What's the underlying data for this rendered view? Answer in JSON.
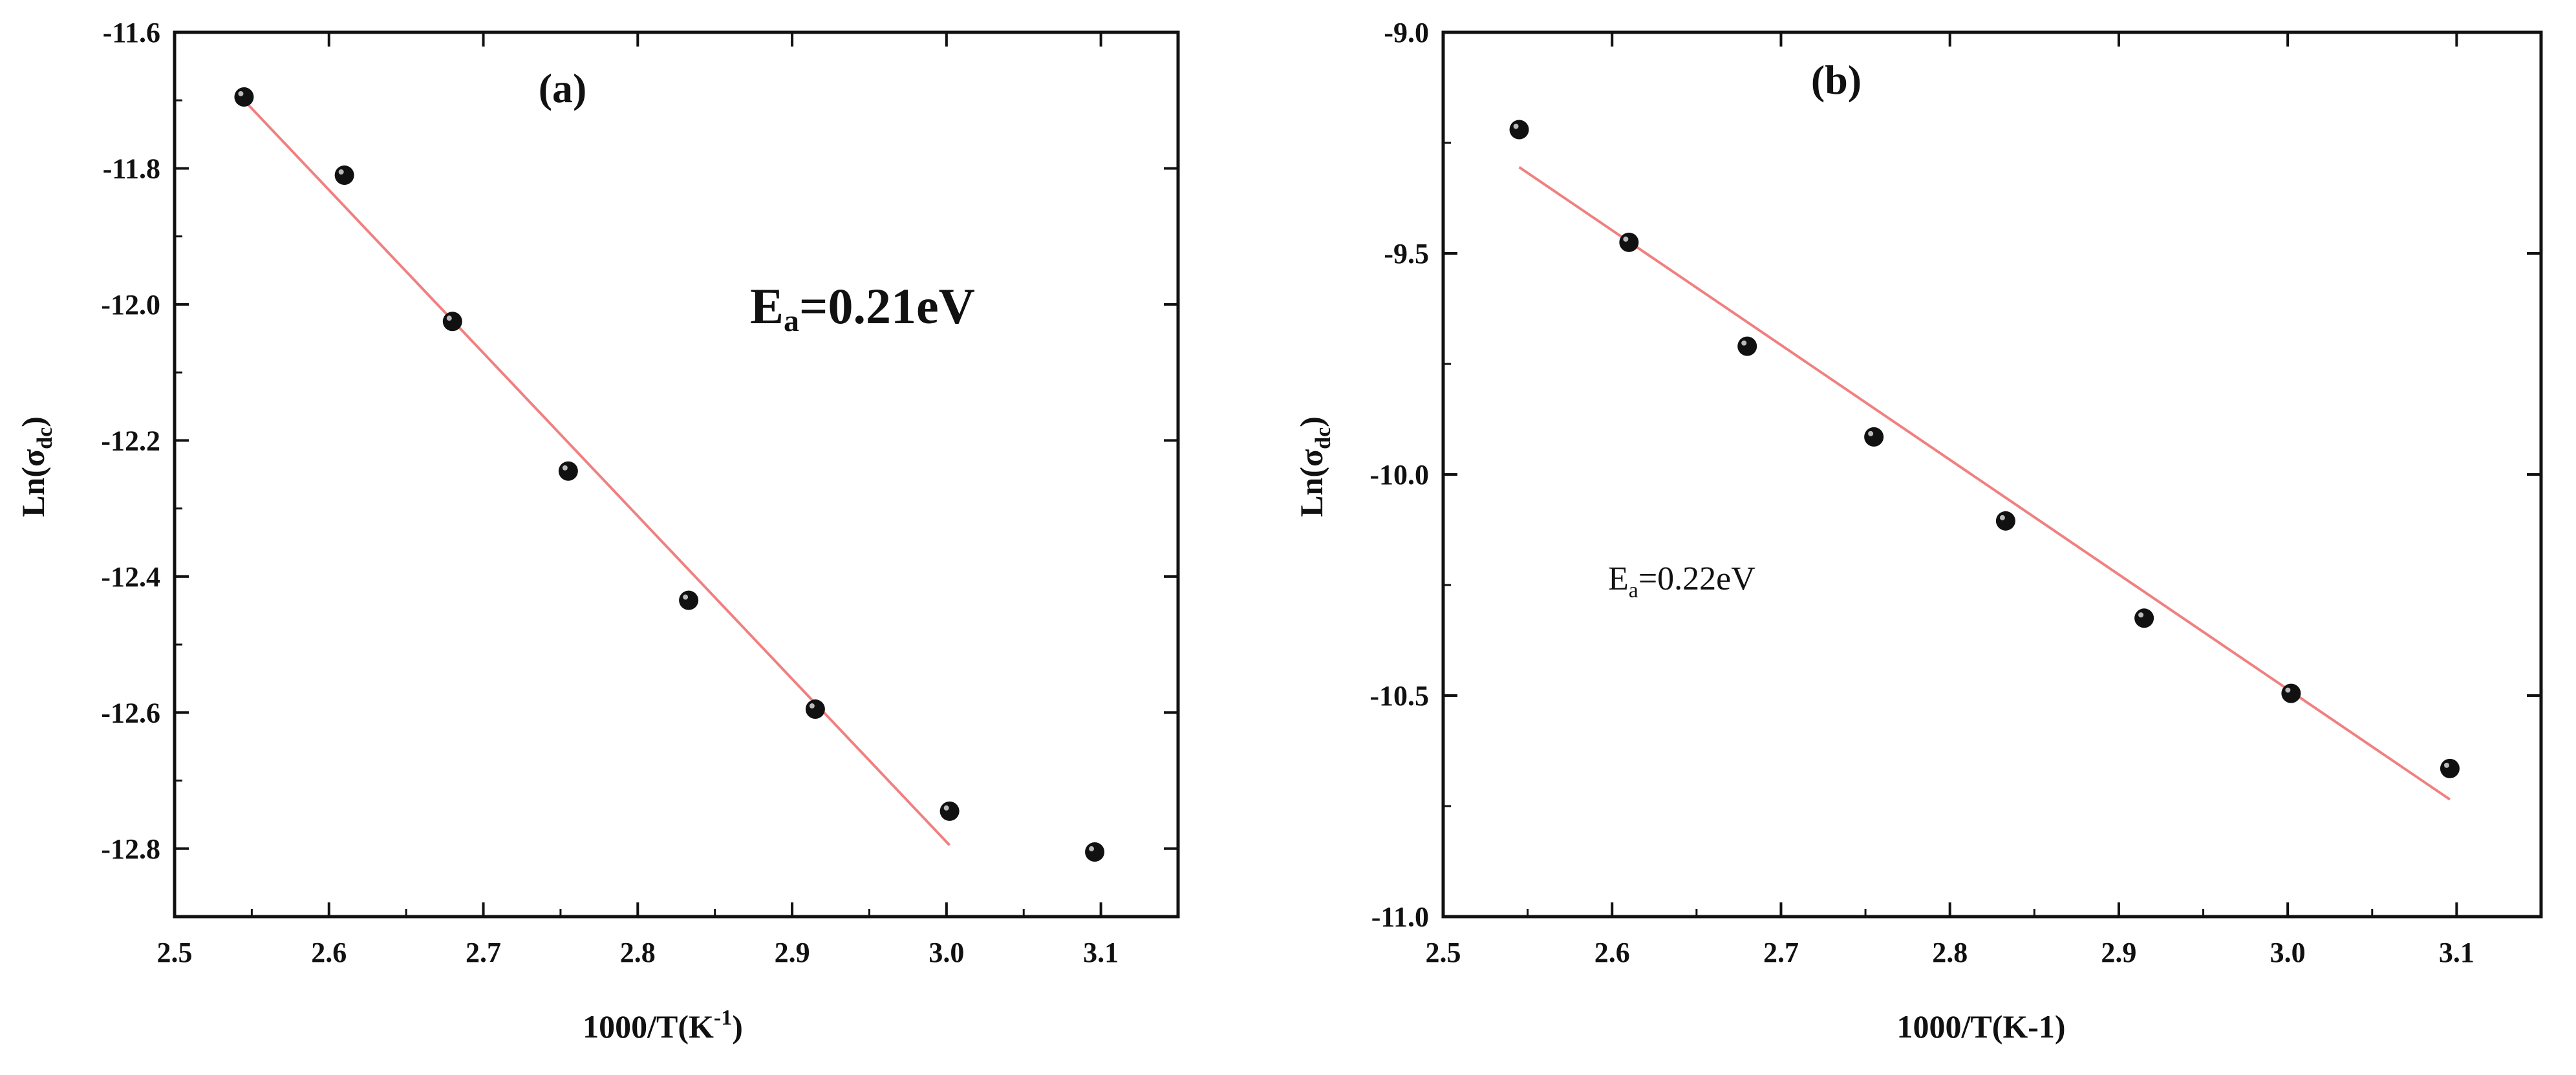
{
  "chart_data": [
    {
      "type": "scatter",
      "panel_label": "(a)",
      "xlabel": "1000/T(K",
      "xlabel_sup": "-1",
      "xlabel_end": ")",
      "ylabel": "Ln(σ",
      "ylabel_sub": "dc",
      "ylabel_end": ")",
      "annotation": "Ea=0.21eV",
      "annotation_main": "E",
      "annotation_sub": "a",
      "annotation_rest": "=0.21eV",
      "xlim": [
        2.5,
        3.15
      ],
      "ylim": [
        -12.9,
        -11.6
      ],
      "xticks": [
        2.5,
        2.6,
        2.7,
        2.8,
        2.9,
        3.0,
        3.1
      ],
      "xtick_labels": [
        "2.5",
        "2.6",
        "2.7",
        "2.8",
        "2.9",
        "3.0",
        "3.1"
      ],
      "yticks": [
        -11.6,
        -11.8,
        -12.0,
        -12.2,
        -12.4,
        -12.6,
        -12.8
      ],
      "ytick_labels": [
        "-11.6",
        "-11.8",
        "-12.0",
        "-12.2",
        "-12.4",
        "-12.6",
        "-12.8"
      ],
      "points": {
        "x": [
          2.545,
          2.61,
          2.68,
          2.755,
          2.833,
          2.915,
          3.002,
          3.096
        ],
        "y": [
          -11.695,
          -11.81,
          -12.025,
          -12.245,
          -12.435,
          -12.595,
          -12.745,
          -12.805
        ]
      },
      "fit_line": {
        "x": [
          2.545,
          3.002
        ],
        "y": [
          -11.7,
          -12.795
        ],
        "color": "#f08080"
      },
      "point_color": "#111111"
    },
    {
      "type": "scatter",
      "panel_label": "(b)",
      "xlabel": "1000/T(K-1)",
      "ylabel": "Ln(σ",
      "ylabel_sub": "dc",
      "ylabel_end": ")",
      "annotation": "Ea=0.22eV",
      "annotation_main": "E",
      "annotation_sub": "a",
      "annotation_rest": "=0.22eV",
      "xlim": [
        2.5,
        3.15
      ],
      "ylim": [
        -11.0,
        -9.0
      ],
      "xticks": [
        2.5,
        2.6,
        2.7,
        2.8,
        2.9,
        3.0,
        3.1
      ],
      "xtick_labels": [
        "2.5",
        "2.6",
        "2.7",
        "2.8",
        "2.9",
        "3.0",
        "3.1"
      ],
      "yticks": [
        -9.0,
        -9.5,
        -10.0,
        -10.5,
        -11.0
      ],
      "ytick_labels": [
        "-9.0",
        "-9.5",
        "-10.0",
        "-10.5",
        "-11.0"
      ],
      "points": {
        "x": [
          2.545,
          2.61,
          2.68,
          2.755,
          2.833,
          2.915,
          3.002,
          3.096
        ],
        "y": [
          -9.22,
          -9.475,
          -9.71,
          -9.915,
          -10.105,
          -10.325,
          -10.495,
          -10.665
        ]
      },
      "fit_line": {
        "x": [
          2.545,
          3.096
        ],
        "y": [
          -9.305,
          -10.735
        ],
        "color": "#f08080"
      },
      "point_color": "#111111"
    }
  ]
}
